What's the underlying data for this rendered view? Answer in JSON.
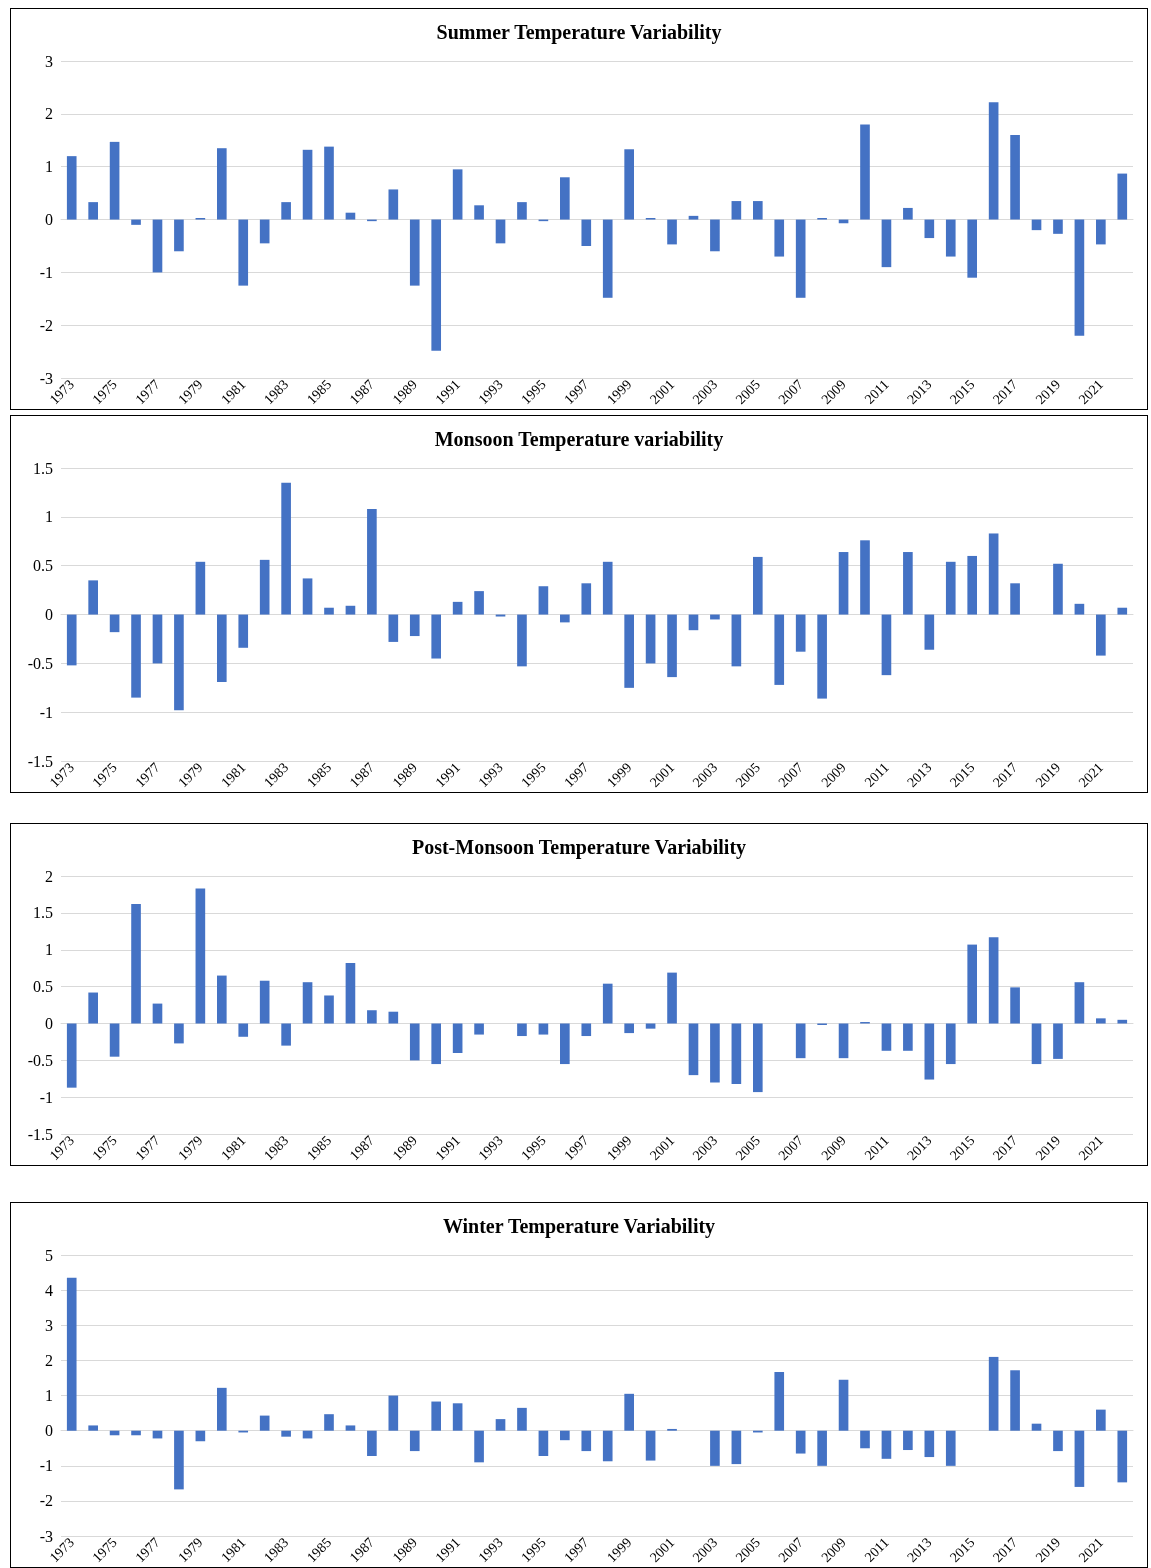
{
  "chart_data": [
    {
      "type": "bar",
      "title": "Summer Temperature Variability",
      "categories": [
        "1973",
        null,
        "1975",
        null,
        "1977",
        null,
        "1979",
        null,
        "1981",
        null,
        "1983",
        null,
        "1985",
        null,
        "1987",
        null,
        "1989",
        null,
        "1991",
        null,
        "1993",
        null,
        "1995",
        null,
        "1997",
        null,
        "1999",
        null,
        "2001",
        null,
        "2003",
        null,
        "2005",
        null,
        "2007",
        null,
        "2009",
        null,
        "2011",
        null,
        "2013",
        null,
        "2015",
        null,
        "2017",
        null,
        "2019",
        null,
        "2021",
        null
      ],
      "series": [
        {
          "color": "#4472c4",
          "values": [
            1.2,
            0.33,
            1.47,
            -0.1,
            -1.0,
            -0.6,
            0.03,
            1.35,
            -1.25,
            -0.45,
            0.33,
            1.32,
            1.38,
            0.13,
            -0.03,
            0.57,
            -1.25,
            -2.48,
            0.95,
            0.27,
            -0.45,
            0.33,
            -0.03,
            0.8,
            -0.5,
            -1.48,
            1.33,
            0.03,
            -0.47,
            0.07,
            -0.6,
            0.35,
            0.35,
            -0.7,
            -1.48,
            0.03,
            -0.07,
            1.8,
            -0.9,
            0.22,
            -0.35,
            -0.7,
            -1.1,
            2.22,
            1.6,
            -0.2,
            -0.27,
            -2.2,
            -0.47,
            0.87
          ]
        }
      ],
      "ylim": [
        -3,
        3
      ],
      "yticks": [
        -3,
        -2,
        -1,
        0,
        1,
        2,
        3
      ],
      "grid": "y"
    },
    {
      "type": "bar",
      "title": "Monsoon Temperature variability",
      "categories": [
        "1973",
        null,
        "1975",
        null,
        "1977",
        null,
        "1979",
        null,
        "1981",
        null,
        "1983",
        null,
        "1985",
        null,
        "1987",
        null,
        "1989",
        null,
        "1991",
        null,
        "1993",
        null,
        "1995",
        null,
        "1997",
        null,
        "1999",
        null,
        "2001",
        null,
        "2003",
        null,
        "2005",
        null,
        "2007",
        null,
        "2009",
        null,
        "2011",
        null,
        "2013",
        null,
        "2015",
        null,
        "2017",
        null,
        "2019",
        null,
        "2021",
        null
      ],
      "series": [
        {
          "color": "#4472c4",
          "values": [
            -0.52,
            0.35,
            -0.18,
            -0.85,
            -0.5,
            -0.98,
            0.54,
            -0.69,
            -0.34,
            0.56,
            1.35,
            0.37,
            0.07,
            0.09,
            1.08,
            -0.28,
            -0.22,
            -0.45,
            0.13,
            0.24,
            -0.02,
            -0.53,
            0.29,
            -0.08,
            0.32,
            0.54,
            -0.75,
            -0.5,
            -0.64,
            -0.16,
            -0.05,
            -0.53,
            0.59,
            -0.72,
            -0.38,
            -0.86,
            0.64,
            0.76,
            -0.62,
            0.64,
            -0.36,
            0.54,
            0.6,
            0.83,
            0.32,
            0,
            0.52,
            0.11,
            -0.42,
            0.07
          ]
        }
      ],
      "ylim": [
        -1.5,
        1.5
      ],
      "yticks": [
        -1.5,
        -1,
        -0.5,
        0,
        0.5,
        1,
        1.5
      ],
      "grid": "y"
    },
    {
      "type": "bar",
      "title": "Post-Monsoon Temperature Variability",
      "categories": [
        "1973",
        null,
        "1975",
        null,
        "1977",
        null,
        "1979",
        null,
        "1981",
        null,
        "1983",
        null,
        "1985",
        null,
        "1987",
        null,
        "1989",
        null,
        "1991",
        null,
        "1993",
        null,
        "1995",
        null,
        "1997",
        null,
        "1999",
        null,
        "2001",
        null,
        "2003",
        null,
        "2005",
        null,
        "2007",
        null,
        "2009",
        null,
        "2011",
        null,
        "2013",
        null,
        "2015",
        null,
        "2017",
        null,
        "2019",
        null,
        "2021",
        null
      ],
      "series": [
        {
          "color": "#4472c4",
          "values": [
            -0.87,
            0.42,
            -0.45,
            1.62,
            0.27,
            -0.27,
            1.83,
            0.65,
            -0.18,
            0.58,
            -0.3,
            0.56,
            0.38,
            0.82,
            0.18,
            0.16,
            -0.5,
            -0.55,
            -0.4,
            -0.15,
            0,
            -0.17,
            -0.15,
            -0.55,
            -0.17,
            0.54,
            -0.13,
            -0.07,
            0.69,
            -0.7,
            -0.8,
            -0.82,
            -0.93,
            0,
            -0.47,
            -0.02,
            -0.47,
            0.02,
            -0.37,
            -0.37,
            -0.76,
            -0.55,
            1.07,
            1.17,
            0.49,
            -0.55,
            -0.48,
            0.56,
            0.07,
            0.05
          ]
        }
      ],
      "ylim": [
        -1.5,
        2
      ],
      "yticks": [
        -1.5,
        -1,
        -0.5,
        0,
        0.5,
        1,
        1.5,
        2
      ],
      "grid": "y"
    },
    {
      "type": "bar",
      "title": "Winter Temperature Variability",
      "categories": [
        "1973",
        null,
        "1975",
        null,
        "1977",
        null,
        "1979",
        null,
        "1981",
        null,
        "1983",
        null,
        "1985",
        null,
        "1987",
        null,
        "1989",
        null,
        "1991",
        null,
        "1993",
        null,
        "1995",
        null,
        "1997",
        null,
        "1999",
        null,
        "2001",
        null,
        "2003",
        null,
        "2005",
        null,
        "2007",
        null,
        "2009",
        null,
        "2011",
        null,
        "2013",
        null,
        "2015",
        null,
        "2017",
        null,
        "2019",
        null,
        "2021",
        null
      ],
      "series": [
        {
          "color": "#4472c4",
          "values": [
            4.35,
            0.15,
            -0.13,
            -0.13,
            -0.22,
            -1.67,
            -0.3,
            1.22,
            -0.05,
            0.43,
            -0.17,
            -0.22,
            0.47,
            0.15,
            -0.72,
            1.0,
            -0.58,
            0.83,
            0.78,
            -0.9,
            0.33,
            0.65,
            -0.72,
            -0.27,
            -0.58,
            -0.87,
            1.05,
            -0.85,
            0.05,
            0,
            -1.0,
            -0.95,
            -0.05,
            1.67,
            -0.65,
            -1.0,
            1.45,
            -0.5,
            -0.8,
            -0.55,
            -0.75,
            -1.0,
            0,
            2.1,
            1.72,
            0.2,
            -0.58,
            -1.6,
            0.6,
            -1.47
          ]
        }
      ],
      "ylim": [
        -3,
        5
      ],
      "yticks": [
        -3,
        -2,
        -1,
        0,
        1,
        2,
        3,
        4,
        5
      ],
      "grid": "y"
    }
  ]
}
